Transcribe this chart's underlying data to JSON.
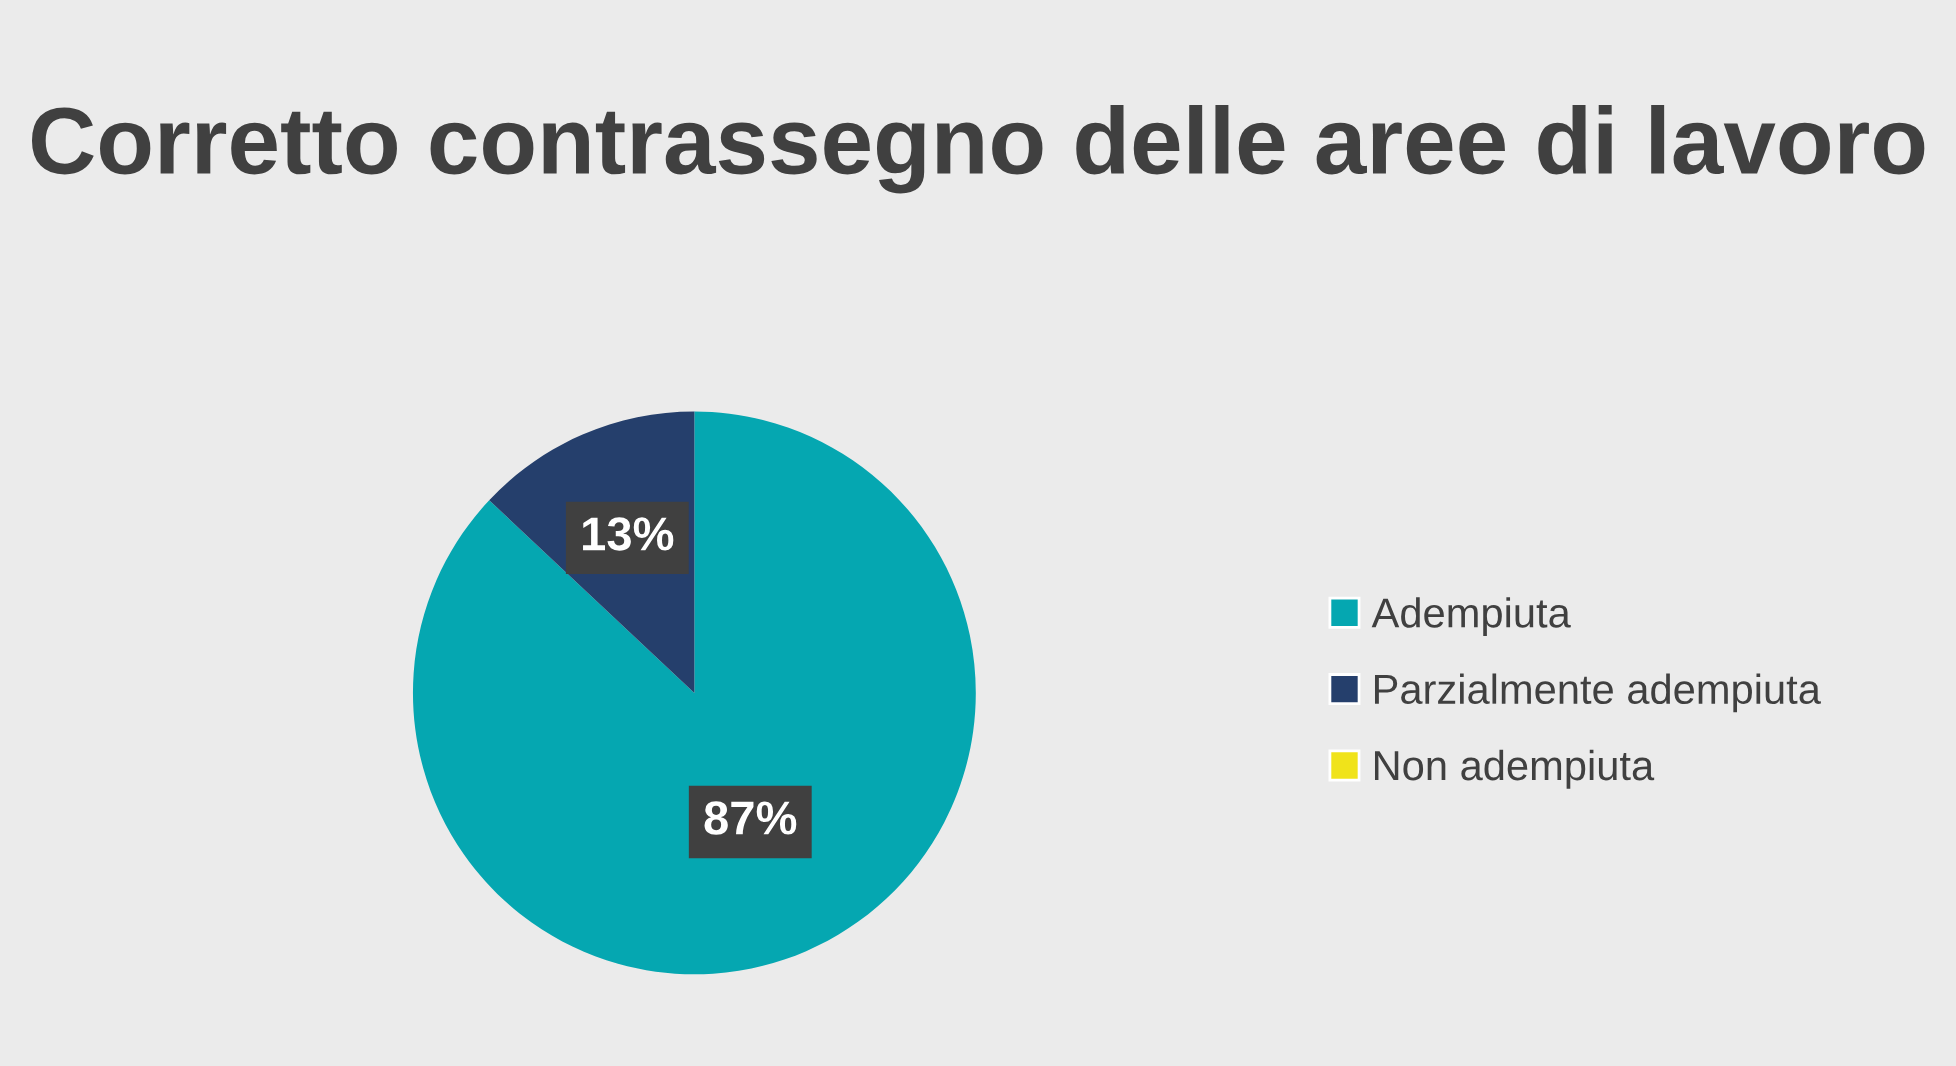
{
  "chart_data": {
    "type": "pie",
    "title": "Corretto contrassegno delle aree di lavoro",
    "categories": [
      "Adempiuta",
      "Parzialmente adempiuta",
      "Non adempiuta"
    ],
    "values": [
      87,
      13,
      0
    ],
    "colors": [
      "#05a7b1",
      "#253f6c",
      "#f0e31a"
    ],
    "value_labels": [
      "87%",
      "13%",
      null
    ],
    "legend": "right"
  }
}
